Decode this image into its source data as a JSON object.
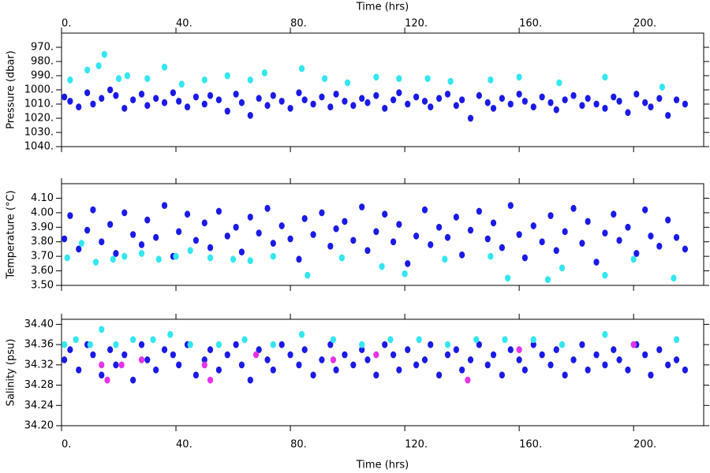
{
  "chart_data": [
    {
      "type": "scatter",
      "x_label": "Time (hrs)",
      "x_axis_side": "top",
      "y_label": "Pressure (dbar)",
      "xlim": [
        0,
        224.5
      ],
      "xticks": [
        {
          "value": 0,
          "label": "0."
        },
        {
          "value": 40,
          "label": "40."
        },
        {
          "value": 80,
          "label": "80."
        },
        {
          "value": 120,
          "label": "120."
        },
        {
          "value": 160,
          "label": "160."
        },
        {
          "value": 200,
          "label": "200."
        }
      ],
      "ylim": [
        1040,
        960
      ],
      "yticks": [
        {
          "value": 970,
          "label": "970."
        },
        {
          "value": 980,
          "label": "980."
        },
        {
          "value": 990,
          "label": "990."
        },
        {
          "value": 1000,
          "label": "1000."
        },
        {
          "value": 1010,
          "label": "1010."
        },
        {
          "value": 1020,
          "label": "1020."
        },
        {
          "value": 1030,
          "label": "1030."
        },
        {
          "value": 1040,
          "label": "1040."
        }
      ],
      "series": [
        {
          "color": "#1a1ae6",
          "x": [
            1,
            3,
            6,
            9,
            11,
            14,
            17,
            19,
            22,
            25,
            28,
            30,
            33,
            36,
            39,
            41,
            44,
            47,
            50,
            52,
            55,
            58,
            61,
            63,
            66,
            69,
            72,
            74,
            77,
            80,
            83,
            85,
            88,
            91,
            94,
            96,
            99,
            102,
            105,
            107,
            110,
            113,
            116,
            118,
            121,
            124,
            127,
            129,
            132,
            135,
            138,
            140,
            143,
            146,
            149,
            151,
            154,
            157,
            160,
            162,
            165,
            168,
            171,
            173,
            176,
            179,
            182,
            184,
            187,
            190,
            193,
            195,
            198,
            201,
            204,
            206,
            209,
            212,
            215,
            218
          ],
          "values": [
            1005,
            1008,
            1012,
            1002,
            1010,
            1006,
            1000,
            1004,
            1013,
            1007,
            1003,
            1011,
            1006,
            1009,
            1002,
            1008,
            1012,
            1005,
            1010,
            1004,
            1007,
            1015,
            1003,
            1009,
            1018,
            1006,
            1011,
            1004,
            1008,
            1013,
            1002,
            1007,
            1010,
            1005,
            1012,
            1003,
            1008,
            1011,
            1006,
            1009,
            1004,
            1013,
            1007,
            1002,
            1010,
            1005,
            1008,
            1012,
            1006,
            1003,
            1011,
            1007,
            1020,
            1004,
            1009,
            1013,
            1006,
            1010,
            1003,
            1008,
            1012,
            1005,
            1009,
            1014,
            1007,
            1004,
            1011,
            1006,
            1010,
            1013,
            1005,
            1008,
            1016,
            1003,
            1009,
            1012,
            1006,
            1018,
            1007,
            1010
          ]
        },
        {
          "color": "#33e6f0",
          "x": [
            3,
            9,
            13,
            15,
            20,
            23,
            30,
            36,
            42,
            50,
            58,
            66,
            71,
            84,
            92,
            100,
            110,
            118,
            128,
            136,
            150,
            160,
            174,
            190,
            210
          ],
          "values": [
            993,
            986,
            983,
            975,
            992,
            990,
            992,
            984,
            996,
            993,
            990,
            993,
            988,
            985,
            992,
            995,
            991,
            992,
            992,
            994,
            993,
            991,
            995,
            991,
            998
          ]
        }
      ]
    },
    {
      "type": "scatter",
      "y_label": "Temperature (°C)",
      "xlim": [
        0,
        224.5
      ],
      "xticks": [
        0,
        40,
        80,
        120,
        160,
        200
      ],
      "ylim": [
        3.5,
        4.2
      ],
      "yticks": [
        {
          "value": 3.5,
          "label": "3.50"
        },
        {
          "value": 3.6,
          "label": "3.60"
        },
        {
          "value": 3.7,
          "label": "3.70"
        },
        {
          "value": 3.8,
          "label": "3.80"
        },
        {
          "value": 3.9,
          "label": "3.90"
        },
        {
          "value": 4.0,
          "label": "4.00"
        },
        {
          "value": 4.1,
          "label": "4.10"
        }
      ],
      "series": [
        {
          "color": "#1a1ae6",
          "x": [
            1,
            3,
            6,
            9,
            11,
            14,
            17,
            19,
            22,
            25,
            28,
            30,
            33,
            36,
            39,
            41,
            44,
            47,
            50,
            52,
            55,
            58,
            61,
            63,
            66,
            69,
            72,
            74,
            77,
            80,
            83,
            85,
            88,
            91,
            94,
            96,
            99,
            102,
            105,
            107,
            110,
            113,
            116,
            118,
            121,
            124,
            127,
            129,
            132,
            135,
            138,
            140,
            143,
            146,
            149,
            151,
            154,
            157,
            160,
            162,
            165,
            168,
            171,
            173,
            176,
            179,
            182,
            184,
            187,
            190,
            193,
            195,
            198,
            201,
            204,
            206,
            209,
            212,
            215,
            218
          ],
          "values": [
            3.82,
            3.98,
            3.75,
            3.88,
            4.02,
            3.8,
            3.92,
            3.72,
            4.0,
            3.85,
            3.78,
            3.95,
            3.83,
            4.05,
            3.7,
            3.87,
            3.99,
            3.81,
            3.93,
            3.76,
            4.01,
            3.84,
            3.9,
            3.73,
            3.97,
            3.86,
            4.03,
            3.79,
            3.91,
            3.82,
            3.68,
            3.96,
            3.85,
            4.0,
            3.77,
            3.89,
            3.94,
            3.81,
            4.04,
            3.74,
            3.87,
            3.99,
            3.8,
            3.92,
            3.65,
            3.84,
            4.02,
            3.78,
            3.9,
            3.83,
            3.97,
            3.71,
            3.88,
            4.01,
            3.82,
            3.93,
            3.76,
            4.05,
            3.85,
            3.69,
            3.91,
            3.8,
            3.98,
            3.74,
            3.87,
            4.03,
            3.79,
            3.94,
            3.66,
            3.86,
            3.99,
            3.81,
            3.9,
            3.72,
            4.02,
            3.84,
            3.77,
            3.95,
            3.83,
            3.75
          ]
        },
        {
          "color": "#33e6f0",
          "x": [
            2,
            7,
            12,
            18,
            22,
            28,
            34,
            40,
            45,
            52,
            60,
            66,
            74,
            86,
            98,
            112,
            120,
            134,
            150,
            156,
            170,
            175,
            190,
            200,
            214
          ],
          "values": [
            3.69,
            3.79,
            3.66,
            3.68,
            3.7,
            3.72,
            3.68,
            3.7,
            3.74,
            3.69,
            3.68,
            3.67,
            3.7,
            3.57,
            3.69,
            3.63,
            3.58,
            3.68,
            3.7,
            3.55,
            3.54,
            3.62,
            3.57,
            3.68,
            3.55
          ]
        }
      ]
    },
    {
      "type": "scatter",
      "x_label": "Time (hrs)",
      "x_axis_side": "bottom",
      "y_label": "Salinity (psu)",
      "xlim": [
        0,
        224.5
      ],
      "xticks": [
        {
          "value": 0,
          "label": "0."
        },
        {
          "value": 40,
          "label": "40."
        },
        {
          "value": 80,
          "label": "80."
        },
        {
          "value": 120,
          "label": "120."
        },
        {
          "value": 160,
          "label": "160."
        },
        {
          "value": 200,
          "label": "200."
        }
      ],
      "ylim": [
        34.2,
        34.41
      ],
      "yticks": [
        {
          "value": 34.2,
          "label": "34.20"
        },
        {
          "value": 34.24,
          "label": "34.24"
        },
        {
          "value": 34.28,
          "label": "34.28"
        },
        {
          "value": 34.32,
          "label": "34.32"
        },
        {
          "value": 34.36,
          "label": "34.36"
        },
        {
          "value": 34.4,
          "label": "34.40"
        }
      ],
      "series": [
        {
          "color": "#1a1ae6",
          "x": [
            1,
            3,
            6,
            9,
            11,
            14,
            17,
            19,
            22,
            25,
            28,
            30,
            33,
            36,
            39,
            41,
            44,
            47,
            50,
            52,
            55,
            58,
            61,
            63,
            66,
            69,
            72,
            74,
            77,
            80,
            83,
            85,
            88,
            91,
            94,
            96,
            99,
            102,
            105,
            107,
            110,
            113,
            116,
            118,
            121,
            124,
            127,
            129,
            132,
            135,
            138,
            140,
            143,
            146,
            149,
            151,
            154,
            157,
            160,
            162,
            165,
            168,
            171,
            173,
            176,
            179,
            182,
            184,
            187,
            190,
            193,
            195,
            198,
            201,
            204,
            206,
            209,
            212,
            215,
            218
          ],
          "values": [
            34.33,
            34.35,
            34.31,
            34.36,
            34.34,
            34.3,
            34.35,
            34.32,
            34.34,
            34.29,
            34.36,
            34.33,
            34.31,
            34.35,
            34.34,
            34.32,
            34.36,
            34.3,
            34.33,
            34.35,
            34.31,
            34.34,
            34.36,
            34.32,
            34.29,
            34.35,
            34.33,
            34.31,
            34.36,
            34.34,
            34.32,
            34.35,
            34.3,
            34.33,
            34.36,
            34.31,
            34.34,
            34.32,
            34.35,
            34.33,
            34.3,
            34.36,
            34.34,
            34.31,
            34.35,
            34.32,
            34.33,
            34.36,
            34.3,
            34.34,
            34.35,
            34.31,
            34.33,
            34.36,
            34.32,
            34.34,
            34.3,
            34.35,
            34.33,
            34.31,
            34.36,
            34.34,
            34.32,
            34.35,
            34.3,
            34.33,
            34.36,
            34.31,
            34.34,
            34.32,
            34.35,
            34.33,
            34.31,
            34.36,
            34.34,
            34.3,
            34.35,
            34.32,
            34.33,
            34.31
          ]
        },
        {
          "color": "#33e6f0",
          "x": [
            1,
            5,
            10,
            14,
            19,
            25,
            32,
            38,
            45,
            55,
            64,
            74,
            84,
            95,
            105,
            115,
            125,
            135,
            145,
            155,
            165,
            175,
            190,
            200,
            215
          ],
          "values": [
            34.36,
            34.37,
            34.36,
            34.39,
            34.36,
            34.37,
            34.37,
            34.38,
            34.36,
            34.36,
            34.37,
            34.36,
            34.38,
            34.37,
            34.36,
            34.37,
            34.37,
            34.36,
            34.37,
            34.37,
            34.37,
            34.36,
            34.38,
            34.36,
            34.37
          ]
        },
        {
          "color": "#e633e6",
          "x": [
            14,
            16,
            21,
            28,
            50,
            52,
            68,
            95,
            110,
            142,
            160,
            200
          ],
          "values": [
            34.32,
            34.29,
            34.32,
            34.33,
            34.32,
            34.29,
            34.34,
            34.33,
            34.34,
            34.29,
            34.35,
            34.36
          ]
        }
      ]
    }
  ]
}
